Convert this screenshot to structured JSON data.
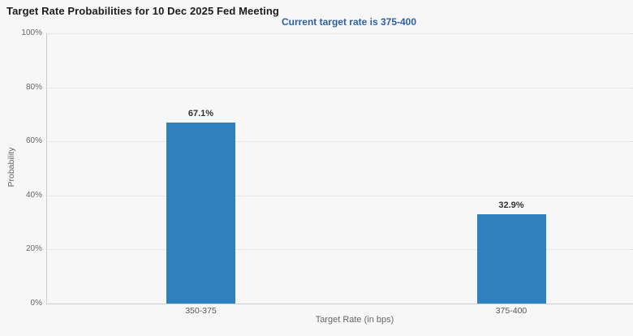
{
  "chart_data": {
    "type": "bar",
    "title": "Target Rate Probabilities for 10 Dec 2025 Fed Meeting",
    "subtitle": "Current target rate is 375-400",
    "categories": [
      "350-375",
      "375-400"
    ],
    "values": [
      67.1,
      32.9
    ],
    "value_labels": [
      "67.1%",
      "32.9%"
    ],
    "xlabel": "Target Rate (in bps)",
    "ylabel": "Probability",
    "ylim": [
      0,
      100
    ],
    "ytick_step": 20,
    "ytick_labels": [
      "0%",
      "20%",
      "40%",
      "60%",
      "80%",
      "100%"
    ],
    "legend": "none",
    "grid": "horizontal-dotted",
    "colors": {
      "background": "#f7f7f8",
      "bar": "#2e81bc",
      "title_text": "#1c1c1c",
      "subtitle_text": "#2d5fa6",
      "axis_text": "#666666",
      "category_text": "#555555",
      "bar_label_text": "#333333",
      "grid_line": "#d9d9d9",
      "axis_line": "#cccccc"
    }
  }
}
